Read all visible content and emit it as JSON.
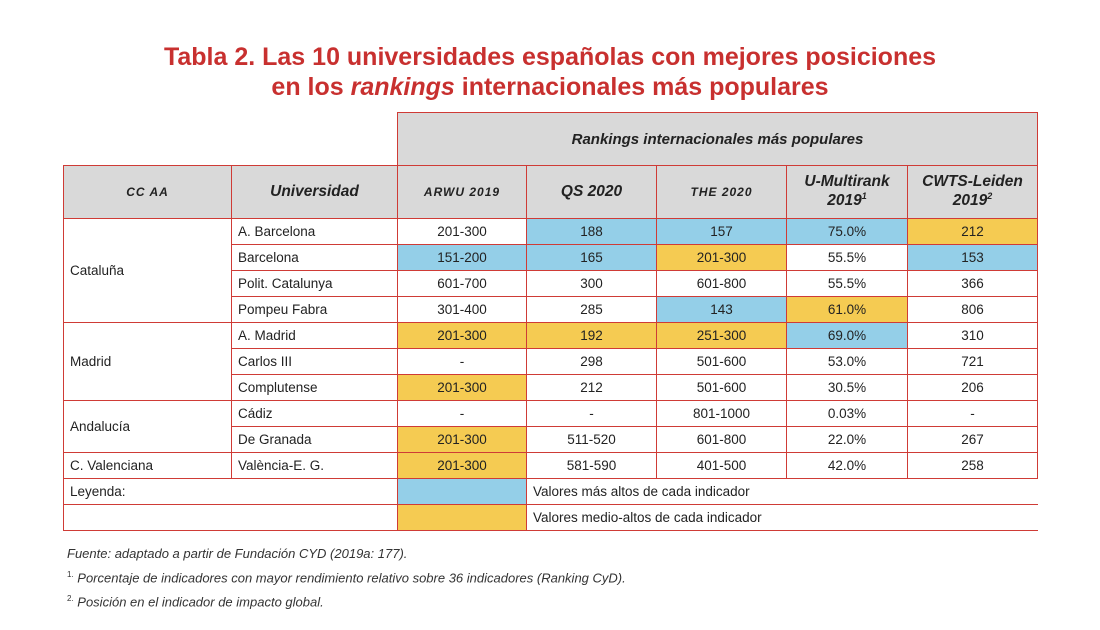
{
  "title": {
    "line1": "Tabla 2. Las 10 universidades españolas con mejores posiciones",
    "line2_pre": "en los ",
    "line2_em": "rankings",
    "line2_post": " internacionales más populares"
  },
  "header": {
    "group_label": "Rankings internacionales más populares",
    "ccaa": "CC AA",
    "universidad": "Universidad",
    "arwu": "ARWU 2019",
    "qs": "QS 2020",
    "the": "THE 2020",
    "umultirank_line1": "U-Multirank",
    "umultirank_line2": "2019",
    "umultirank_sup": "1",
    "cwts_line1": "CWTS-Leiden",
    "cwts_line2": "2019",
    "cwts_sup": "2"
  },
  "regions": [
    "Cataluña",
    "Madrid",
    "Andalucía",
    "C. Valenciana"
  ],
  "rows": [
    {
      "uni": "A. Barcelona",
      "arwu": "201-300",
      "qs": "188",
      "the": "157",
      "um": "75.0%",
      "cwts": "212"
    },
    {
      "uni": "Barcelona",
      "arwu": "151-200",
      "qs": "165",
      "the": "201-300",
      "um": "55.5%",
      "cwts": "153"
    },
    {
      "uni": "Polit. Catalunya",
      "arwu": "601-700",
      "qs": "300",
      "the": "601-800",
      "um": "55.5%",
      "cwts": "366"
    },
    {
      "uni": "Pompeu Fabra",
      "arwu": "301-400",
      "qs": "285",
      "the": "143",
      "um": "61.0%",
      "cwts": "806"
    },
    {
      "uni": "A. Madrid",
      "arwu": "201-300",
      "qs": "192",
      "the": "251-300",
      "um": "69.0%",
      "cwts": "310"
    },
    {
      "uni": "Carlos III",
      "arwu": "-",
      "qs": "298",
      "the": "501-600",
      "um": "53.0%",
      "cwts": "721"
    },
    {
      "uni": "Complutense",
      "arwu": "201-300",
      "qs": "212",
      "the": "501-600",
      "um": "30.5%",
      "cwts": "206"
    },
    {
      "uni": "Cádiz",
      "arwu": "-",
      "qs": "-",
      "the": "801-1000",
      "um": "0.03%",
      "cwts": "-"
    },
    {
      "uni": "De Granada",
      "arwu": "201-300",
      "qs": "511-520",
      "the": "601-800",
      "um": "22.0%",
      "cwts": "267"
    },
    {
      "uni": "València-E. G.",
      "arwu": "201-300",
      "qs": "581-590",
      "the": "401-500",
      "um": "42.0%",
      "cwts": "258"
    }
  ],
  "legend": {
    "label": "Leyenda:",
    "blue_text": "Valores más altos de cada indicador",
    "yellow_text": "Valores medio-altos de cada indicador"
  },
  "colors": {
    "title": "#c8302f",
    "border": "#cf3b36",
    "header_bg": "#d9d9d9",
    "highest": "#94cfe8",
    "mid_high": "#f5cb52"
  },
  "notes": {
    "source": "Fuente: adaptado a partir de Fundación CYD (2019a: 177).",
    "note1_mark": "1.",
    "note1": " Porcentaje de indicadores con mayor rendimiento relativo sobre 36 indicadores (Ranking CyD).",
    "note2_mark": "2.",
    "note2": " Posición en el indicador de impacto global."
  }
}
